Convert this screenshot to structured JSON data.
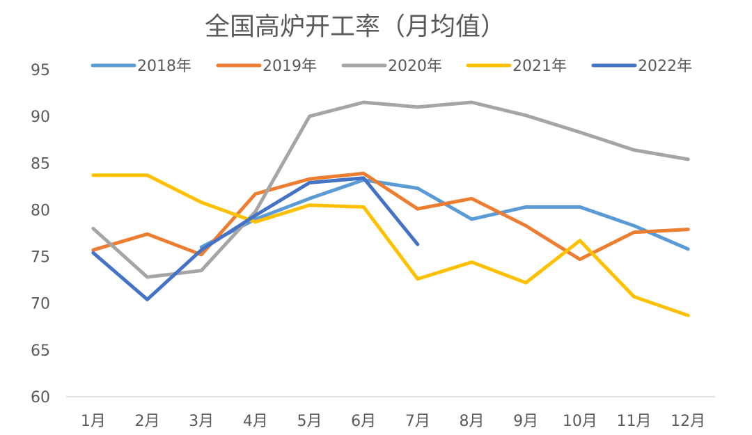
{
  "chart_data": {
    "type": "line",
    "title": "全国高炉开工率（月均值）",
    "xlabel": "",
    "ylabel": "",
    "categories": [
      "1月",
      "2月",
      "3月",
      "4月",
      "5月",
      "6月",
      "7月",
      "8月",
      "9月",
      "10月",
      "11月",
      "12月"
    ],
    "ylim": [
      60,
      95
    ],
    "yticks": [
      60,
      65,
      70,
      75,
      80,
      85,
      90,
      95
    ],
    "grid": false,
    "legend": "top",
    "series": [
      {
        "name": "2018年",
        "color": "#5B9BD5",
        "values": [
          null,
          null,
          76.0,
          79.0,
          81.2,
          83.2,
          82.3,
          79.0,
          80.3,
          80.3,
          78.3,
          75.8
        ]
      },
      {
        "name": "2019年",
        "color": "#ED7D31",
        "values": [
          75.7,
          77.4,
          75.2,
          81.7,
          83.3,
          83.9,
          80.1,
          81.2,
          78.3,
          74.7,
          77.6,
          77.9
        ]
      },
      {
        "name": "2020年",
        "color": "#A5A5A5",
        "values": [
          78.0,
          72.8,
          73.5,
          79.8,
          90.0,
          91.5,
          91.0,
          91.5,
          90.1,
          88.3,
          86.4,
          85.4
        ]
      },
      {
        "name": "2021年",
        "color": "#FFC000",
        "values": [
          83.7,
          83.7,
          80.8,
          78.7,
          80.5,
          80.3,
          72.6,
          74.4,
          72.2,
          76.7,
          70.7,
          68.7
        ]
      },
      {
        "name": "2022年",
        "color": "#4472C4",
        "values": [
          75.4,
          70.4,
          75.7,
          79.4,
          82.9,
          83.4,
          76.3,
          null,
          null,
          null,
          null,
          null
        ]
      }
    ]
  }
}
